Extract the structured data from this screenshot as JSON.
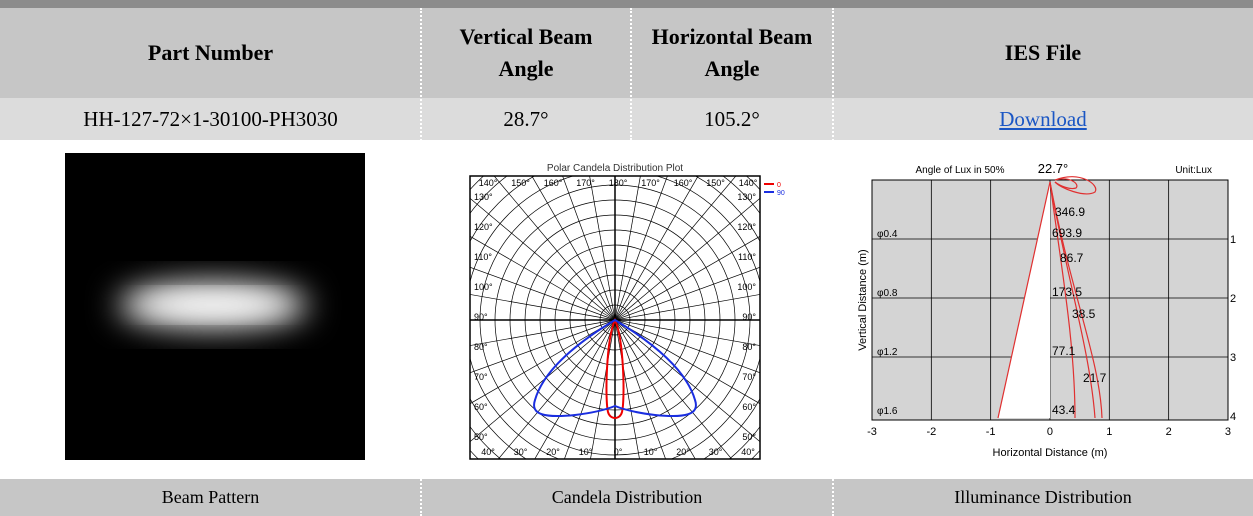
{
  "table": {
    "headers": [
      "Part Number",
      "Vertical Beam Angle",
      "Horizontal Beam Angle",
      "IES File"
    ],
    "rows": [
      [
        "HH-127-72×1-30100-PH3030",
        "28.7°",
        "105.2°",
        "Download"
      ]
    ],
    "footer": [
      "Beam Pattern",
      "Candela Distribution",
      "Illuminance Distribution"
    ]
  },
  "polar_plot": {
    "title": "Polar Candela Distribution Plot",
    "legend": [
      "0",
      "90"
    ],
    "top_labels": [
      "140°",
      "150°",
      "160°",
      "170°",
      "180°",
      "170°",
      "160°",
      "150°",
      "140°"
    ],
    "side_labels": [
      "130°",
      "120°",
      "110°",
      "100°",
      "90°",
      "80°",
      "70°",
      "60°",
      "50°"
    ],
    "bottom_labels": [
      "40°",
      "30°",
      "20°",
      "10°",
      "0°",
      "10°",
      "20°",
      "30°",
      "40°"
    ]
  },
  "illuminance_plot": {
    "title": "Angle of Lux in 50%",
    "angle": "22.7°",
    "unit": "Unit:Lux",
    "x_label": "Horizontal Distance (m)",
    "y_label": "Vertical Distance (m)",
    "x_ticks": [
      "-3",
      "-2",
      "-1",
      "0",
      "1",
      "2",
      "3"
    ],
    "diameters": [
      "φ0.4",
      "φ0.8",
      "φ1.2",
      "φ1.6"
    ],
    "distances": [
      "1",
      "2",
      "3",
      "4"
    ],
    "lux_labels": [
      "346.9",
      "693.9",
      "86.7",
      "173.5",
      "38.5",
      "77.1",
      "21.7",
      "43.4"
    ]
  }
}
